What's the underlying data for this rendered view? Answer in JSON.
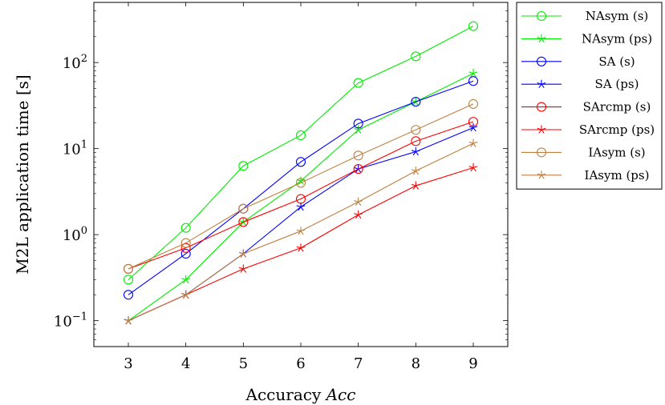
{
  "chart_data": {
    "type": "line",
    "xlabel": "Accuracy",
    "xlabel_italic": "Acc",
    "ylabel": "M2L application time [s]",
    "yscale": "log",
    "xlim": [
      2.4,
      9.6
    ],
    "ylim": [
      0.05,
      500
    ],
    "x": [
      3,
      4,
      5,
      6,
      7,
      8,
      9
    ],
    "xticks": [
      "3",
      "4",
      "5",
      "6",
      "7",
      "8",
      "9"
    ],
    "yticks": [
      {
        "value": 0.1,
        "base": "10",
        "exp": "−1"
      },
      {
        "value": 1,
        "base": "10",
        "exp": "0"
      },
      {
        "value": 10,
        "base": "10",
        "exp": "1"
      },
      {
        "value": 100,
        "base": "10",
        "exp": "2"
      }
    ],
    "grid": false,
    "legend_position": "outside-right",
    "series": [
      {
        "name": "NAsym (s)",
        "color": "#00ee00",
        "marker": "circle",
        "values": [
          0.3,
          1.2,
          6.3,
          14.3,
          58,
          118,
          265
        ]
      },
      {
        "name": "NAsym (ps)",
        "color": "#00ee00",
        "marker": "star",
        "values": [
          0.1,
          0.3,
          1.4,
          4.2,
          16.5,
          35,
          75
        ]
      },
      {
        "name": "SA (s)",
        "color": "#0000ff",
        "marker": "circle",
        "values": [
          0.2,
          0.6,
          2.0,
          7.0,
          19.5,
          35,
          61
        ]
      },
      {
        "name": "SA (ps)",
        "color": "#0000ff",
        "marker": "star",
        "values": [
          0.1,
          0.2,
          0.6,
          2.1,
          5.8,
          9.2,
          17.5
        ]
      },
      {
        "name": "SArcmp (s)",
        "color": "#ff0000",
        "marker": "circle",
        "values": [
          0.4,
          0.7,
          1.4,
          2.6,
          5.8,
          12.2,
          20.5
        ]
      },
      {
        "name": "SArcmp (ps)",
        "color": "#ff0000",
        "marker": "star",
        "values": [
          0.1,
          0.2,
          0.4,
          0.7,
          1.7,
          3.7,
          6.0
        ]
      },
      {
        "name": "IAsym (s)",
        "color": "#bf8040",
        "marker": "circle",
        "values": [
          0.4,
          0.8,
          2.0,
          4.0,
          8.3,
          16.5,
          33
        ]
      },
      {
        "name": "IAsym (ps)",
        "color": "#bf8040",
        "marker": "star",
        "values": [
          0.1,
          0.2,
          0.6,
          1.1,
          2.4,
          5.5,
          11.5
        ]
      }
    ]
  }
}
